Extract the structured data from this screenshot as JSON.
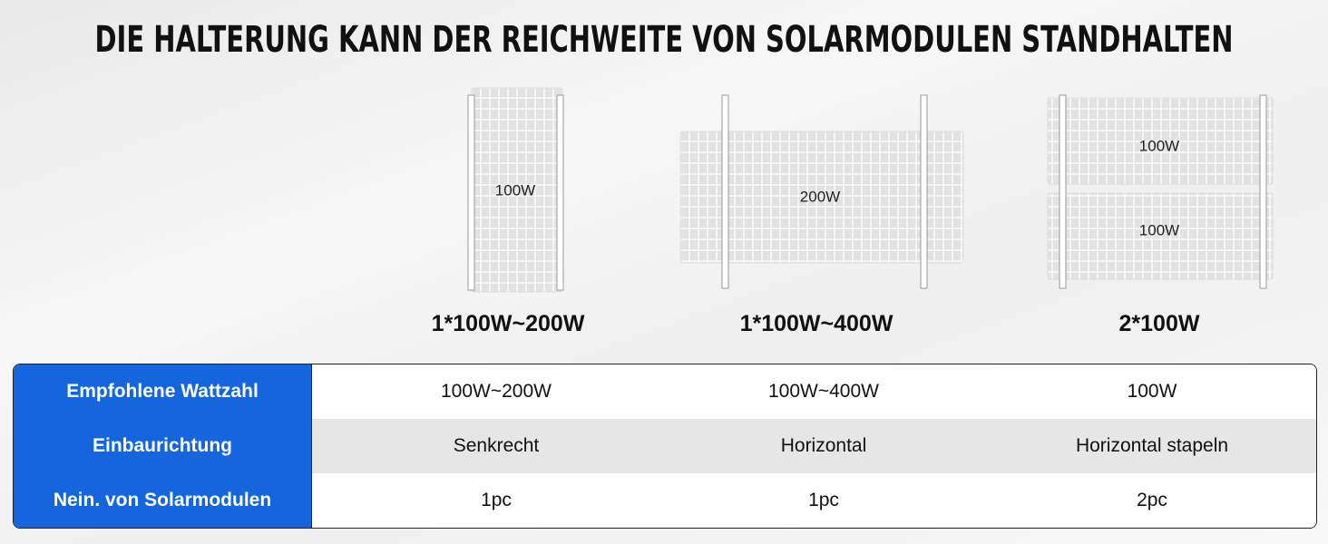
{
  "title": "DIE HALTERUNG KANN DER REICHWEITE VON SOLARMODULEN STANDHALTEN",
  "configurations": [
    {
      "panel_labels": [
        "100W"
      ],
      "caption": "1*100W~200W"
    },
    {
      "panel_labels": [
        "200W"
      ],
      "caption": "1*100W~400W"
    },
    {
      "panel_labels": [
        "100W",
        "100W"
      ],
      "caption": "2*100W"
    }
  ],
  "table": {
    "rows": [
      [
        "Empfohlene Wattzahl",
        "100W~200W",
        "100W~400W",
        "100W"
      ],
      [
        "Einbaurichtung",
        "Senkrecht",
        "Horizontal",
        "Horizontal stapeln"
      ],
      [
        "Nein. von Solarmodulen",
        "1pc",
        "1pc",
        "2pc"
      ]
    ]
  }
}
